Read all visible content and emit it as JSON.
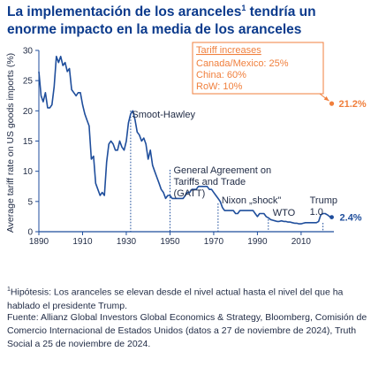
{
  "title_part1": "La implementación de los aranceles",
  "title_sup": "1",
  "title_part2": " tendría un enorme impacto en la media de los aranceles",
  "chart_data": {
    "type": "line",
    "ylabel": "Average tariff rate on US goods imports (%)",
    "xlabel": "",
    "xlim": [
      1890,
      2025
    ],
    "ylim": [
      0,
      30
    ],
    "xticks": [
      "1890",
      "1910",
      "1930",
      "1950",
      "1970",
      "1990",
      "2010"
    ],
    "xtick_values": [
      1890,
      1910,
      1930,
      1950,
      1970,
      1990,
      2010
    ],
    "yticks": [
      "0",
      "5",
      "10",
      "15",
      "20",
      "25",
      "30"
    ],
    "ytick_values": [
      0,
      5,
      10,
      15,
      20,
      25,
      30
    ],
    "grid": false,
    "colors": {
      "line": "#1f4e9c",
      "highlight": "#f07f3c",
      "axis": "#1f4e9c",
      "text": "#1f2a44"
    },
    "series": [
      {
        "x": [
          1890,
          1891,
          1892,
          1893,
          1894,
          1895,
          1896,
          1897,
          1898,
          1899,
          1900,
          1901,
          1902,
          1903,
          1904,
          1905,
          1906,
          1907,
          1908,
          1909,
          1910,
          1911,
          1912,
          1913,
          1914,
          1915,
          1916,
          1917,
          1918,
          1919,
          1920,
          1921,
          1922,
          1923,
          1924,
          1925,
          1926,
          1927,
          1928,
          1929,
          1930,
          1931,
          1932,
          1933,
          1934,
          1935,
          1936,
          1937,
          1938,
          1939,
          1940,
          1941,
          1942,
          1943,
          1944,
          1945,
          1946,
          1947,
          1948,
          1949,
          1950,
          1951,
          1952,
          1953,
          1954,
          1955,
          1956,
          1957,
          1958,
          1959,
          1960,
          1961,
          1962,
          1963,
          1964,
          1965,
          1966,
          1967,
          1968,
          1969,
          1970,
          1971,
          1972,
          1973,
          1974,
          1975,
          1976,
          1977,
          1978,
          1979,
          1980,
          1981,
          1982,
          1983,
          1984,
          1985,
          1986,
          1987,
          1988,
          1989,
          1990,
          1991,
          1992,
          1993,
          1994,
          1995,
          1996,
          1997,
          1998,
          1999,
          2000,
          2001,
          2002,
          2003,
          2004,
          2005,
          2006,
          2007,
          2008,
          2009,
          2010,
          2011,
          2012,
          2013,
          2014,
          2015,
          2016,
          2017,
          2018,
          2019,
          2020,
          2021,
          2022,
          2023,
          2024
        ],
        "values": [
          26.5,
          22.5,
          21.5,
          23.0,
          20.5,
          20.5,
          21.0,
          24.0,
          29.0,
          28.0,
          29.0,
          27.5,
          28.0,
          26.5,
          27.0,
          23.5,
          23.0,
          22.5,
          23.0,
          23.0,
          21.0,
          19.5,
          18.5,
          17.5,
          12.0,
          12.5,
          8.0,
          7.0,
          6.0,
          6.5,
          6.0,
          11.5,
          14.5,
          15.0,
          14.5,
          13.5,
          13.5,
          15.0,
          14.0,
          13.5,
          15.0,
          18.0,
          19.5,
          20.0,
          18.5,
          16.5,
          16.0,
          15.0,
          15.5,
          14.5,
          12.0,
          13.5,
          11.0,
          10.0,
          9.0,
          8.0,
          7.0,
          6.5,
          5.5,
          6.0,
          6.0,
          5.5,
          5.5,
          5.5,
          5.5,
          5.5,
          5.5,
          6.0,
          6.5,
          6.5,
          7.0,
          7.0,
          7.0,
          7.5,
          7.5,
          7.5,
          7.5,
          7.5,
          7.0,
          7.0,
          6.5,
          6.0,
          5.5,
          5.0,
          4.0,
          3.5,
          3.5,
          3.5,
          3.5,
          3.5,
          3.0,
          3.0,
          3.5,
          3.5,
          3.5,
          3.5,
          3.5,
          3.5,
          3.5,
          3.0,
          2.5,
          3.0,
          3.0,
          3.0,
          2.5,
          2.3,
          2.0,
          1.9,
          1.8,
          1.7,
          1.7,
          1.8,
          1.7,
          1.7,
          1.6,
          1.6,
          1.5,
          1.4,
          1.4,
          1.3,
          1.3,
          1.4,
          1.5,
          1.5,
          1.5,
          1.5,
          1.5,
          1.5,
          1.7,
          2.8,
          3.0,
          3.0,
          2.8,
          2.5,
          2.4
        ]
      }
    ],
    "events": [
      {
        "x": 1932,
        "label": "Smoot-Hawley"
      },
      {
        "x": 1950,
        "label": "General Agreement on Tariffs and Trade (GATT)"
      },
      {
        "x": 1972,
        "label": "Nixon „shock\""
      },
      {
        "x": 1995,
        "label": "WTO"
      },
      {
        "x": 2020,
        "label": "Trump 1.0"
      }
    ],
    "annotations": {
      "gatt_lines": [
        "General Agreement on",
        "Tariffs and Trade",
        "(GATT)"
      ],
      "trump_lines": [
        "Trump",
        "1.0"
      ],
      "tariff_box_title": "Tariff increases",
      "tariff_box_lines": [
        "Canada/Mexico: 25%",
        "China: 60%",
        "RoW: 10%"
      ],
      "projected_label": "21.2%",
      "projected_value": 21.2,
      "current_label": "2.4%",
      "current_value": 2.4,
      "endpoint_x": 2024
    }
  },
  "footnote1_sup": "1",
  "footnote1_text": "Hipótesis: Los aranceles se elevan desde el nivel actual hasta el nivel del que ha hablado el presidente Trump.",
  "footnote2_text": "Fuente: Allianz Global Investors Global Economics & Strategy, Bloomberg, Comisión de Comercio Internacional de Estados Unidos (datos a 27 de noviembre de 2024), Truth Social a 25 de noviembre de 2024."
}
